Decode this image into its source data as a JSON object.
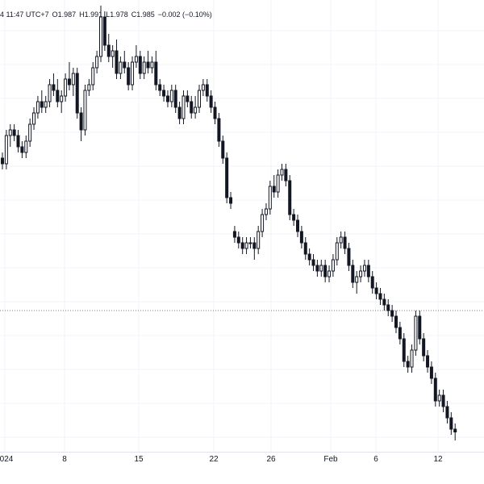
{
  "header": {
    "time": "4 11:47 UTC+7",
    "open": "O1.987",
    "high": "H1.991",
    "low": "L1.978",
    "close": "C1.985",
    "change": "−0.002 (−0.10%)"
  },
  "colors": {
    "candle": "#131722",
    "grid": "#f0f3fa",
    "price_line": "#787b86",
    "axis_text": "#131722"
  },
  "chart_data": {
    "type": "candlestick",
    "x_ticks": [
      "024",
      "8",
      "15",
      "22",
      "26",
      "Feb",
      "6",
      "12"
    ],
    "ylim": [
      1.55,
      2.35
    ],
    "price_line": 1.8,
    "grid": true,
    "series": [
      {
        "values": [
          [
            2.07,
            2.08,
            2.05,
            2.06
          ],
          [
            2.06,
            2.12,
            2.05,
            2.11
          ],
          [
            2.11,
            2.13,
            2.09,
            2.12
          ],
          [
            2.12,
            2.13,
            2.1,
            2.11
          ],
          [
            2.11,
            2.12,
            2.08,
            2.09
          ],
          [
            2.09,
            2.1,
            2.07,
            2.08
          ],
          [
            2.08,
            2.11,
            2.07,
            2.1
          ],
          [
            2.1,
            2.14,
            2.09,
            2.13
          ],
          [
            2.13,
            2.16,
            2.12,
            2.15
          ],
          [
            2.15,
            2.18,
            2.14,
            2.17
          ],
          [
            2.17,
            2.19,
            2.15,
            2.16
          ],
          [
            2.16,
            2.18,
            2.15,
            2.17
          ],
          [
            2.17,
            2.21,
            2.16,
            2.2
          ],
          [
            2.2,
            2.22,
            2.18,
            2.19
          ],
          [
            2.19,
            2.21,
            2.16,
            2.17
          ],
          [
            2.17,
            2.19,
            2.15,
            2.18
          ],
          [
            2.18,
            2.22,
            2.17,
            2.21
          ],
          [
            2.21,
            2.24,
            2.19,
            2.2
          ],
          [
            2.2,
            2.23,
            2.18,
            2.22
          ],
          [
            2.22,
            2.23,
            2.14,
            2.15
          ],
          [
            2.15,
            2.16,
            2.1,
            2.12
          ],
          [
            2.12,
            2.2,
            2.11,
            2.19
          ],
          [
            2.19,
            2.21,
            2.18,
            2.2
          ],
          [
            2.2,
            2.24,
            2.19,
            2.23
          ],
          [
            2.23,
            2.26,
            2.22,
            2.25
          ],
          [
            2.25,
            2.34,
            2.24,
            2.32
          ],
          [
            2.32,
            2.33,
            2.26,
            2.27
          ],
          [
            2.27,
            2.29,
            2.24,
            2.25
          ],
          [
            2.25,
            2.27,
            2.23,
            2.26
          ],
          [
            2.26,
            2.28,
            2.21,
            2.22
          ],
          [
            2.22,
            2.25,
            2.21,
            2.24
          ],
          [
            2.24,
            2.26,
            2.22,
            2.23
          ],
          [
            2.23,
            2.24,
            2.19,
            2.2
          ],
          [
            2.2,
            2.25,
            2.19,
            2.24
          ],
          [
            2.24,
            2.27,
            2.23,
            2.25
          ],
          [
            2.25,
            2.26,
            2.21,
            2.22
          ],
          [
            2.22,
            2.25,
            2.21,
            2.24
          ],
          [
            2.24,
            2.26,
            2.22,
            2.23
          ],
          [
            2.23,
            2.25,
            2.22,
            2.24
          ],
          [
            2.24,
            2.26,
            2.19,
            2.2
          ],
          [
            2.2,
            2.21,
            2.18,
            2.19
          ],
          [
            2.19,
            2.2,
            2.17,
            2.18
          ],
          [
            2.18,
            2.19,
            2.16,
            2.17
          ],
          [
            2.17,
            2.2,
            2.16,
            2.19
          ],
          [
            2.19,
            2.2,
            2.15,
            2.16
          ],
          [
            2.16,
            2.17,
            2.13,
            2.14
          ],
          [
            2.14,
            2.19,
            2.13,
            2.18
          ],
          [
            2.18,
            2.19,
            2.16,
            2.17
          ],
          [
            2.17,
            2.18,
            2.14,
            2.15
          ],
          [
            2.15,
            2.18,
            2.14,
            2.16
          ],
          [
            2.16,
            2.2,
            2.15,
            2.19
          ],
          [
            2.19,
            2.21,
            2.18,
            2.2
          ],
          [
            2.2,
            2.21,
            2.17,
            2.18
          ],
          [
            2.18,
            2.19,
            2.15,
            2.16
          ],
          [
            2.16,
            2.17,
            2.13,
            2.14
          ],
          [
            2.14,
            2.15,
            2.09,
            2.1
          ],
          [
            2.1,
            2.11,
            2.06,
            2.07
          ],
          [
            2.07,
            2.08,
            1.99,
            2.0
          ],
          [
            2.0,
            2.01,
            1.98,
            1.99
          ],
          [
            1.94,
            1.95,
            1.92,
            1.93
          ],
          [
            1.93,
            1.94,
            1.91,
            1.92
          ],
          [
            1.92,
            1.93,
            1.9,
            1.91
          ],
          [
            1.91,
            1.93,
            1.9,
            1.92
          ],
          [
            1.92,
            1.93,
            1.91,
            1.92
          ],
          [
            1.92,
            1.93,
            1.89,
            1.91
          ],
          [
            1.91,
            1.95,
            1.9,
            1.94
          ],
          [
            1.94,
            1.98,
            1.93,
            1.97
          ],
          [
            1.97,
            1.99,
            1.96,
            1.98
          ],
          [
            1.98,
            2.03,
            1.97,
            2.02
          ],
          [
            2.02,
            2.04,
            2.0,
            2.01
          ],
          [
            2.01,
            2.05,
            2.0,
            2.04
          ],
          [
            2.04,
            2.06,
            2.03,
            2.05
          ],
          [
            2.05,
            2.06,
            2.02,
            2.03
          ],
          [
            2.03,
            2.04,
            1.96,
            1.97
          ],
          [
            1.97,
            1.98,
            1.95,
            1.96
          ],
          [
            1.96,
            1.97,
            1.93,
            1.94
          ],
          [
            1.94,
            1.95,
            1.91,
            1.92
          ],
          [
            1.92,
            1.93,
            1.89,
            1.9
          ],
          [
            1.9,
            1.91,
            1.88,
            1.89
          ],
          [
            1.89,
            1.9,
            1.87,
            1.88
          ],
          [
            1.88,
            1.89,
            1.86,
            1.87
          ],
          [
            1.87,
            1.89,
            1.86,
            1.88
          ],
          [
            1.88,
            1.89,
            1.85,
            1.86
          ],
          [
            1.86,
            1.88,
            1.85,
            1.87
          ],
          [
            1.87,
            1.9,
            1.86,
            1.89
          ],
          [
            1.89,
            1.93,
            1.88,
            1.92
          ],
          [
            1.92,
            1.94,
            1.91,
            1.93
          ],
          [
            1.93,
            1.94,
            1.9,
            1.91
          ],
          [
            1.91,
            1.92,
            1.87,
            1.88
          ],
          [
            1.88,
            1.89,
            1.84,
            1.85
          ],
          [
            1.85,
            1.87,
            1.83,
            1.86
          ],
          [
            1.86,
            1.88,
            1.85,
            1.87
          ],
          [
            1.87,
            1.89,
            1.86,
            1.88
          ],
          [
            1.88,
            1.89,
            1.85,
            1.86
          ],
          [
            1.86,
            1.87,
            1.83,
            1.84
          ],
          [
            1.84,
            1.85,
            1.82,
            1.83
          ],
          [
            1.83,
            1.84,
            1.81,
            1.82
          ],
          [
            1.82,
            1.83,
            1.8,
            1.81
          ],
          [
            1.81,
            1.82,
            1.79,
            1.8
          ],
          [
            1.8,
            1.81,
            1.78,
            1.79
          ],
          [
            1.79,
            1.8,
            1.76,
            1.77
          ],
          [
            1.77,
            1.78,
            1.74,
            1.75
          ],
          [
            1.75,
            1.76,
            1.7,
            1.71
          ],
          [
            1.71,
            1.72,
            1.69,
            1.7
          ],
          [
            1.7,
            1.74,
            1.69,
            1.73
          ],
          [
            1.73,
            1.8,
            1.72,
            1.79
          ],
          [
            1.79,
            1.8,
            1.74,
            1.75
          ],
          [
            1.75,
            1.76,
            1.71,
            1.72
          ],
          [
            1.72,
            1.73,
            1.69,
            1.7
          ],
          [
            1.7,
            1.71,
            1.67,
            1.68
          ],
          [
            1.68,
            1.69,
            1.63,
            1.64
          ],
          [
            1.64,
            1.66,
            1.63,
            1.65
          ],
          [
            1.65,
            1.66,
            1.62,
            1.63
          ],
          [
            1.63,
            1.64,
            1.6,
            1.61
          ],
          [
            1.61,
            1.62,
            1.58,
            1.59
          ],
          [
            1.59,
            1.6,
            1.57,
            1.585
          ]
        ]
      }
    ]
  }
}
